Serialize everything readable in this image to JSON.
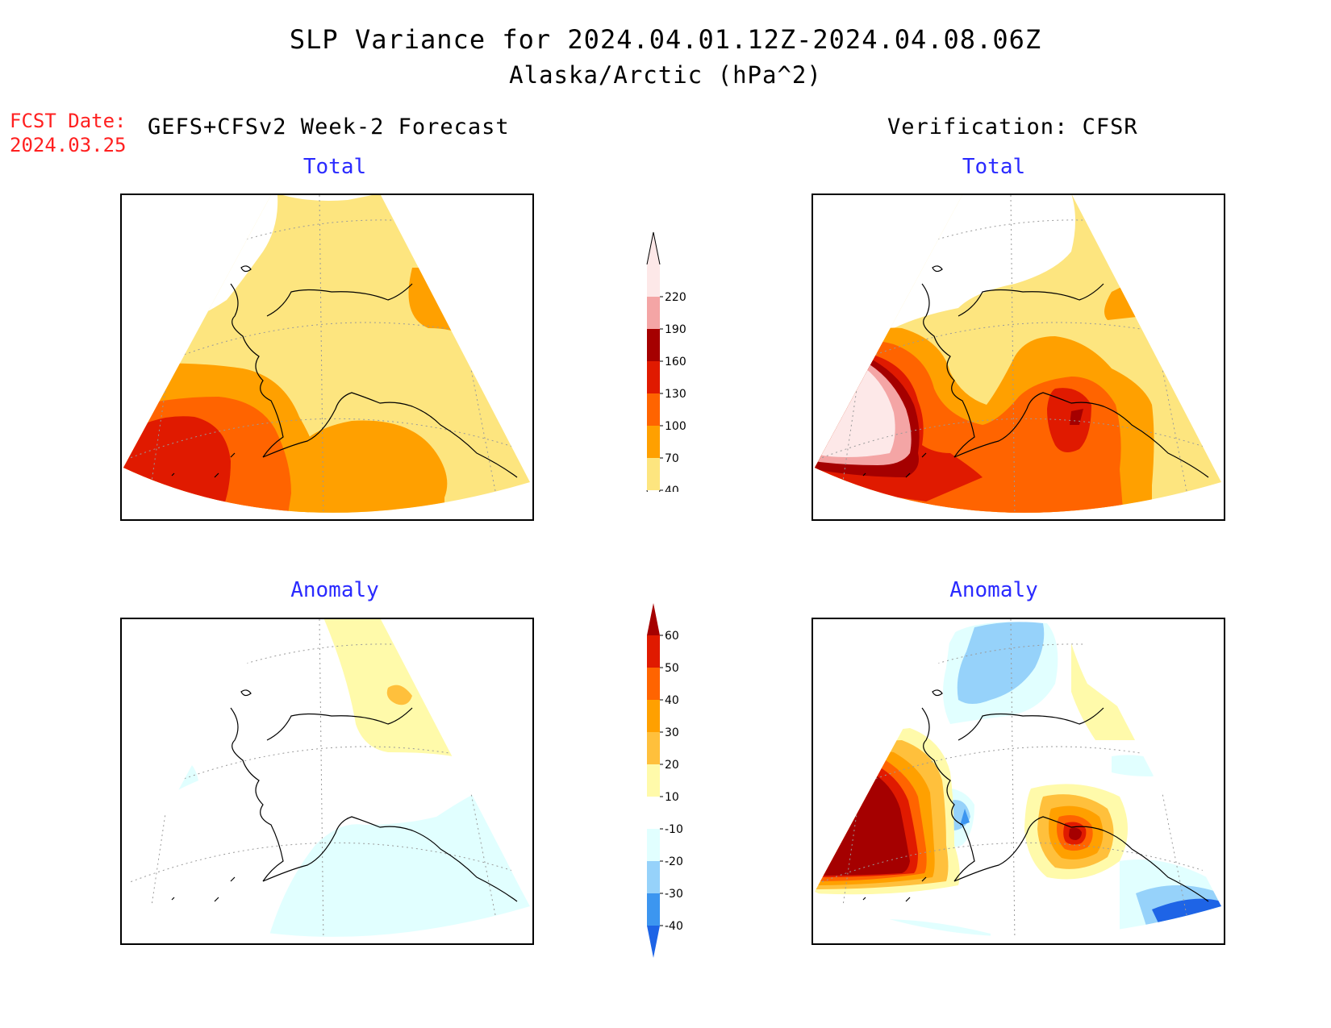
{
  "title": {
    "line1": "SLP Variance for 2024.04.01.12Z-2024.04.08.06Z",
    "line2": "Alaska/Arctic (hPa^2)"
  },
  "forecast": {
    "label": "FCST Date:",
    "date": "2024.03.25"
  },
  "headers": {
    "left": "GEFS+CFSv2 Week-2 Forecast",
    "right": "Verification: CFSR"
  },
  "panels": {
    "top_left": "Total",
    "top_right": "Total",
    "bottom_left": "Anomaly",
    "bottom_right": "Anomaly"
  },
  "colorbars": {
    "total": {
      "labels": [
        "40",
        "70",
        "100",
        "130",
        "160",
        "190",
        "220"
      ],
      "colors": [
        "#fde57f",
        "#ffa000",
        "#ff6400",
        "#e01a00",
        "#a50000",
        "#f4a5a5",
        "#fde8e8"
      ]
    },
    "anomaly": {
      "labels": [
        "-40",
        "-30",
        "-20",
        "-10",
        "10",
        "20",
        "30",
        "40",
        "50",
        "60"
      ],
      "colors": [
        "#1e64e6",
        "#3c96f0",
        "#96d2fa",
        "#e1ffff",
        "#ffffff",
        "#fffaaa",
        "#ffc03c",
        "#ffa000",
        "#ff6400",
        "#e01a00",
        "#a50000"
      ]
    }
  }
}
